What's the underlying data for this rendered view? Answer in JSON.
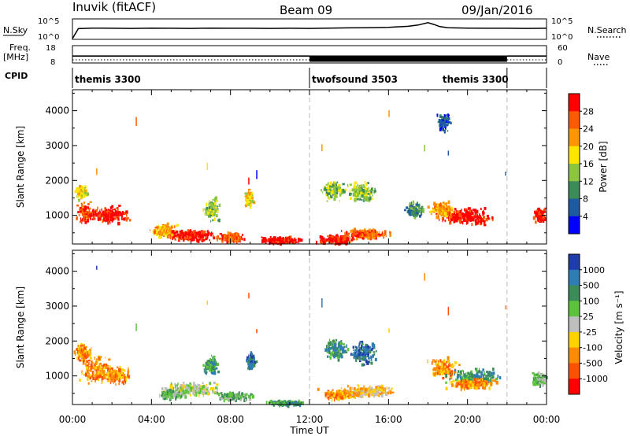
{
  "header": {
    "station": "Inuvik (fitACF)",
    "beam": "Beam 09",
    "date": "09/Jan/2016"
  },
  "side_labels": {
    "nsky": "N.Sky",
    "freq": "Freq.",
    "freq_unit": "[MHz]",
    "cpid": "CPID",
    "nsearch": "N.Search",
    "nave": "Nave"
  },
  "colors": {
    "black": "#000000",
    "dashed": "#bbbbbb",
    "ground_scatter": "#bfbfbf"
  },
  "chart_data": [
    {
      "type": "line",
      "panel": "noise",
      "ylabel_left": "N.Sky",
      "ylabel_right": "N.Search",
      "left_ticks": [
        "10^5",
        "10^0"
      ],
      "right_ticks": [
        "10^5",
        "10^0"
      ],
      "x_hours": [
        0,
        0.3,
        1,
        2,
        3,
        4,
        5,
        6,
        7,
        8,
        9,
        10,
        11,
        12,
        13,
        14,
        15,
        16,
        17,
        17.5,
        18,
        18.3,
        18.6,
        19,
        20,
        21,
        22,
        23,
        24
      ],
      "y_frac": [
        0.0,
        0.55,
        0.58,
        0.57,
        0.56,
        0.58,
        0.57,
        0.56,
        0.58,
        0.57,
        0.57,
        0.56,
        0.57,
        0.56,
        0.58,
        0.59,
        0.6,
        0.62,
        0.68,
        0.75,
        0.88,
        0.78,
        0.66,
        0.6,
        0.58,
        0.57,
        0.57,
        0.56,
        0.57
      ]
    },
    {
      "type": "line",
      "panel": "frequency",
      "ylabel_left": "Freq. [MHz]",
      "ylabel_right": "Nave",
      "left_ticks": [
        "18",
        "8"
      ],
      "right_ticks": [
        "60",
        "0"
      ],
      "segments": [
        {
          "start": 0,
          "end": 12,
          "freq_mhz": 12
        },
        {
          "start": 12,
          "end": 22,
          "freq_mhz": 10.5,
          "alternating": true
        },
        {
          "start": 22,
          "end": 24,
          "freq_mhz": 12
        }
      ]
    },
    {
      "type": "table",
      "panel": "cpid",
      "label": "CPID",
      "programs": [
        {
          "name": "themis 3300",
          "start": 0,
          "end": 12
        },
        {
          "name": "twofsound 3503",
          "start": 12,
          "end": 22
        },
        {
          "name": "themis 3300",
          "start": 22,
          "end": 24
        }
      ]
    },
    {
      "type": "heatmap",
      "panel": "power",
      "ylabel": "Slant Range [km]",
      "yticks": [
        "4000",
        "3000",
        "2000",
        "1000"
      ],
      "ytick_values": [
        4000,
        3000,
        2000,
        1000
      ],
      "ylim": [
        180,
        4600
      ],
      "colorbar_label": "Power [dB]",
      "colorbar_ticks": [
        "28",
        "24",
        "20",
        "16",
        "12",
        "8",
        "4"
      ],
      "colorbar_colors": [
        "#ff0000",
        "#ff5a00",
        "#ff9600",
        "#ffe600",
        "#8cc63f",
        "#3c8c5a",
        "#1e5aa0",
        "#0000ff"
      ],
      "blobs": [
        {
          "hour": 0.6,
          "w": 0.5,
          "range": 1100,
          "rh": 380,
          "ci": 1
        },
        {
          "hour": 1.8,
          "w": 1.4,
          "range": 1050,
          "rh": 320,
          "ci": 0
        },
        {
          "hour": 0.4,
          "w": 0.4,
          "range": 1700,
          "rh": 300,
          "ci": 3
        },
        {
          "hour": 4.6,
          "w": 0.9,
          "range": 600,
          "rh": 250,
          "ci": 2
        },
        {
          "hour": 6.0,
          "w": 1.5,
          "range": 450,
          "rh": 200,
          "ci": 0
        },
        {
          "hour": 8.0,
          "w": 0.9,
          "range": 400,
          "rh": 180,
          "ci": 1
        },
        {
          "hour": 10.5,
          "w": 1.4,
          "range": 320,
          "rh": 120,
          "ci": 0
        },
        {
          "hour": 8.9,
          "w": 0.3,
          "range": 1500,
          "rh": 300,
          "ci": 3
        },
        {
          "hour": 7.0,
          "w": 0.5,
          "range": 1200,
          "rh": 400,
          "ci": 4
        },
        {
          "hour": 13.3,
          "w": 1.2,
          "range": 350,
          "rh": 150,
          "ci": 0
        },
        {
          "hour": 14.8,
          "w": 1.5,
          "range": 500,
          "rh": 180,
          "ci": 1
        },
        {
          "hour": 13.2,
          "w": 0.7,
          "range": 1750,
          "rh": 350,
          "ci": 4
        },
        {
          "hour": 14.6,
          "w": 0.9,
          "range": 1700,
          "rh": 350,
          "ci": 4
        },
        {
          "hour": 17.3,
          "w": 0.6,
          "range": 1200,
          "rh": 300,
          "ci": 5
        },
        {
          "hour": 19.9,
          "w": 1.8,
          "range": 1000,
          "rh": 300,
          "ci": 0
        },
        {
          "hour": 18.7,
          "w": 0.8,
          "range": 1200,
          "rh": 300,
          "ci": 2
        },
        {
          "hour": 23.6,
          "w": 0.4,
          "range": 1050,
          "rh": 250,
          "ci": 0
        },
        {
          "hour": 18.8,
          "w": 0.4,
          "range": 3700,
          "rh": 300,
          "ci": 6
        }
      ]
    },
    {
      "type": "heatmap",
      "panel": "velocity",
      "ylabel": "Slant Range [km]",
      "yticks": [
        "4000",
        "3000",
        "2000",
        "1000"
      ],
      "ytick_values": [
        4000,
        3000,
        2000,
        1000
      ],
      "ylim": [
        180,
        4600
      ],
      "colorbar_label": "Velocity [m s⁻¹]",
      "colorbar_ticks": [
        "1000",
        "500",
        "100",
        "25",
        "-25",
        "-100",
        "-500",
        "-1000"
      ],
      "colorbar_colors": [
        "#1e3caa",
        "#2e7db4",
        "#3c8c5a",
        "#5cc43c",
        "#bebebe",
        "#ffd200",
        "#ff8c00",
        "#ff5000",
        "#ff0000"
      ],
      "blobs": [
        {
          "hour": 1.2,
          "w": 1.0,
          "range": 1200,
          "rh": 550,
          "ci": 6
        },
        {
          "hour": 2.2,
          "w": 0.8,
          "range": 1050,
          "rh": 300,
          "ci": 6
        },
        {
          "hour": 0.5,
          "w": 0.5,
          "range": 1700,
          "rh": 300,
          "ci": 6
        },
        {
          "hour": 6.0,
          "w": 2.0,
          "range": 650,
          "rh": 250,
          "ci": 4
        },
        {
          "hour": 5.0,
          "w": 0.8,
          "range": 500,
          "rh": 150,
          "ci": 3
        },
        {
          "hour": 8.2,
          "w": 1.3,
          "range": 450,
          "rh": 150,
          "ci": 3
        },
        {
          "hour": 10.8,
          "w": 1.2,
          "range": 260,
          "rh": 80,
          "ci": 2
        },
        {
          "hour": 9.0,
          "w": 0.3,
          "range": 1450,
          "rh": 350,
          "ci": 1
        },
        {
          "hour": 7.0,
          "w": 0.5,
          "range": 1300,
          "rh": 350,
          "ci": 2
        },
        {
          "hour": 13.4,
          "w": 1.2,
          "range": 500,
          "rh": 200,
          "ci": 6
        },
        {
          "hour": 15.0,
          "w": 1.6,
          "range": 600,
          "rh": 200,
          "ci": 5
        },
        {
          "hour": 13.3,
          "w": 0.7,
          "range": 1800,
          "rh": 400,
          "ci": 2
        },
        {
          "hour": 14.7,
          "w": 0.9,
          "range": 1700,
          "rh": 400,
          "ci": 1
        },
        {
          "hour": 18.7,
          "w": 0.9,
          "range": 1250,
          "rh": 350,
          "ci": 6
        },
        {
          "hour": 20.3,
          "w": 1.6,
          "range": 1000,
          "rh": 300,
          "ci": 2
        },
        {
          "hour": 20.2,
          "w": 1.5,
          "range": 800,
          "rh": 180,
          "ci": 6
        },
        {
          "hour": 23.6,
          "w": 0.4,
          "range": 950,
          "rh": 250,
          "ci": 3
        }
      ]
    }
  ],
  "x_axis": {
    "label": "Time UT",
    "ticks": [
      "00:00",
      "04:00",
      "08:00",
      "12:00",
      "16:00",
      "20:00",
      "00:00"
    ],
    "tick_hours": [
      0,
      4,
      8,
      12,
      16,
      20,
      24
    ],
    "xlim": [
      0,
      24
    ]
  }
}
